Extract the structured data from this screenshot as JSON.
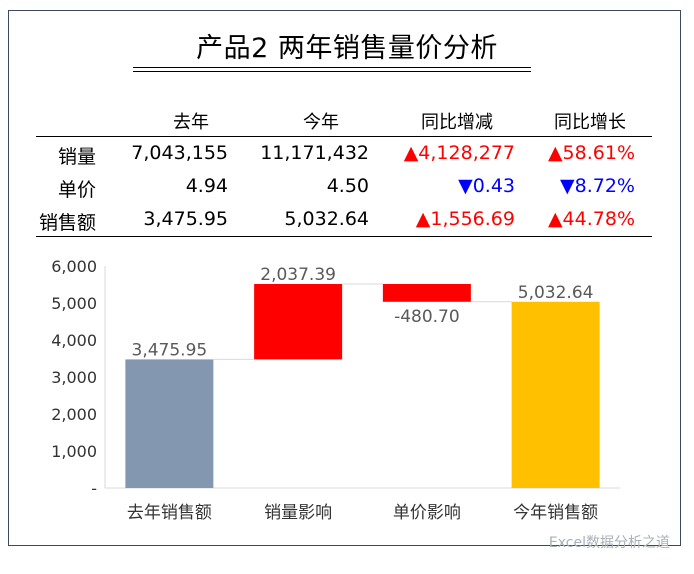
{
  "title": "产品2 两年销售量价分析",
  "table": {
    "headers": [
      "去年",
      "今年",
      "同比增减",
      "同比增长"
    ],
    "rows": [
      {
        "label": "销量",
        "last": "7,043,155",
        "this": "11,171,432",
        "diff": "▲4,128,277",
        "pct": "▲58.61%",
        "diff_dir": "up",
        "pct_dir": "up"
      },
      {
        "label": "单价",
        "last": "4.94",
        "this": "4.50",
        "diff": "▼0.43",
        "pct": "▼8.72%",
        "diff_dir": "down",
        "pct_dir": "down"
      },
      {
        "label": "销售额",
        "last": "3,475.95",
        "this": "5,032.64",
        "diff": "▲1,556.69",
        "pct": "▲44.78%",
        "diff_dir": "up",
        "pct_dir": "up"
      }
    ]
  },
  "chart_data": {
    "type": "bar",
    "subtype": "waterfall",
    "categories": [
      "去年销售额",
      "销量影响",
      "单价影响",
      "今年销售额"
    ],
    "values": [
      3475.95,
      2037.39,
      -480.7,
      5032.64
    ],
    "data_labels": [
      "3,475.95",
      "2,037.39",
      "-480.70",
      "5,032.64"
    ],
    "ylim": [
      0,
      6000
    ],
    "yticks": [
      0,
      1000,
      2000,
      3000,
      4000,
      5000,
      6000
    ],
    "ytick_labels": [
      "-",
      "1,000",
      "2,000",
      "3,000",
      "4,000",
      "5,000",
      "6,000"
    ],
    "grid": false,
    "colors": {
      "start_total": "#8497b0",
      "increase": "#ff0000",
      "decrease": "#ff0000",
      "end_total": "#ffc000",
      "connector": "#d9d9d9"
    }
  },
  "watermark": "Excel数据分析之道"
}
